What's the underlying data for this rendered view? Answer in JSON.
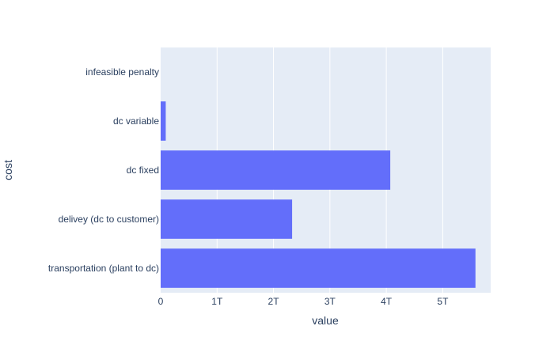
{
  "chart_data": {
    "type": "bar",
    "orientation": "horizontal",
    "categories": [
      "transportation (plant to dc)",
      "delivey (dc to customer)",
      "dc fixed",
      "dc variable",
      "infeasible penalty"
    ],
    "values": [
      5.58,
      2.33,
      4.07,
      0.09,
      0
    ],
    "value_unit": "T",
    "xlabel": "value",
    "ylabel": "cost",
    "xlim": [
      0,
      5.85
    ],
    "xticks": [
      0,
      1,
      2,
      3,
      4,
      5
    ],
    "xtick_labels": [
      "0",
      "1T",
      "2T",
      "3T",
      "4T",
      "5T"
    ],
    "grid": true,
    "legend": "none",
    "colors": {
      "bar": "#636efa",
      "plot_bg": "#e5ecf6",
      "grid": "#ffffff",
      "text": "#2a3f5f"
    }
  }
}
